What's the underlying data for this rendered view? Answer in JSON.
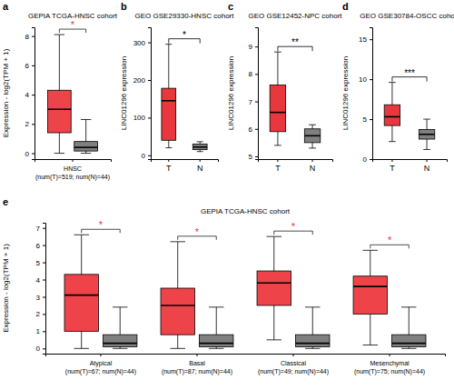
{
  "chart_data": [
    {
      "type": "box",
      "label": "a",
      "title": "GEPIA TCGA-HNSC cohort",
      "y_label": "Expression - log2(TPM + 1)",
      "categories": [
        "HNSC\n(num(T)=519; num(N)=44)"
      ],
      "series": [
        {
          "color": "#ee4449",
          "min": [
            0
          ],
          "q1": [
            1.4
          ],
          "median": [
            3.0
          ],
          "q3": [
            4.3
          ],
          "max": [
            8.1
          ]
        },
        {
          "color": "#7f7f7f",
          "min": [
            0
          ],
          "q1": [
            0.15
          ],
          "median": [
            0.4
          ],
          "q3": [
            0.8
          ],
          "max": [
            2.3
          ]
        }
      ],
      "significance": [
        "*"
      ],
      "ylim": [
        -0.4,
        8.6
      ],
      "yticks": [
        0,
        2,
        4,
        6,
        8
      ]
    },
    {
      "type": "box",
      "label": "b",
      "title": "GEO GSE29330-HNSC cohort",
      "y_label": "LINC01296 expression",
      "categories": [
        "T",
        "N"
      ],
      "series": [
        {
          "colors": [
            "#e8383d",
            "#808080"
          ],
          "min": [
            20,
            10
          ],
          "q1": [
            40,
            15
          ],
          "median": [
            145,
            22
          ],
          "q3": [
            178,
            30
          ],
          "max": [
            295,
            36
          ]
        }
      ],
      "significance": "*",
      "ylim": [
        -10,
        340
      ],
      "yticks": [
        0,
        100,
        200,
        300
      ]
    },
    {
      "type": "box",
      "label": "c",
      "title": "GEO GSE12452-NPC cohort",
      "y_label": "LINC01296 expression",
      "categories": [
        "T",
        "N"
      ],
      "series": [
        {
          "colors": [
            "#e8383d",
            "#808080"
          ],
          "min": [
            5.4,
            5.3
          ],
          "q1": [
            5.9,
            5.5
          ],
          "median": [
            6.6,
            5.75
          ],
          "q3": [
            7.6,
            6.0
          ],
          "max": [
            8.8,
            6.15
          ]
        }
      ],
      "significance": "**",
      "ylim": [
        4.9,
        9.7
      ],
      "yticks": [
        5,
        6,
        7,
        8,
        9
      ]
    },
    {
      "type": "box",
      "label": "d",
      "title": "GEO GSE30784-OSCC cohort",
      "y_label": "LINC01296 expression",
      "categories": [
        "T",
        "N"
      ],
      "series": [
        {
          "colors": [
            "#e8383d",
            "#808080"
          ],
          "min": [
            2.2,
            1.2
          ],
          "q1": [
            4.2,
            2.5
          ],
          "median": [
            5.3,
            3.1
          ],
          "q3": [
            6.8,
            3.7
          ],
          "max": [
            9.6,
            5.0
          ]
        }
      ],
      "significance": "***",
      "ylim": [
        0,
        16.5
      ],
      "yticks": [
        0,
        5,
        10,
        15
      ]
    },
    {
      "type": "box",
      "label": "e",
      "title": "GEPIA TCGA-HNSC cohort",
      "y_label": "Expression - log2(TPM + 1)",
      "categories": [
        "Atypical\n(num(T)=67; num(N)=44)",
        "Basal\n(num(T)=87; num(N)=44)",
        "Classical\n(num(T)=49; num(N)=44)",
        "Mesenchymal\n(num(T)=75; num(N)=44)"
      ],
      "series": [
        {
          "color": "#ee4449",
          "min": [
            0,
            0,
            0.5,
            0.2
          ],
          "q1": [
            1.0,
            0.8,
            2.5,
            2.0
          ],
          "median": [
            3.1,
            2.5,
            3.8,
            3.6
          ],
          "q3": [
            4.3,
            3.5,
            4.5,
            4.2
          ],
          "max": [
            6.6,
            6.2,
            6.5,
            5.7
          ]
        },
        {
          "color": "#7f7f7f",
          "min": [
            0,
            0,
            0,
            0
          ],
          "q1": [
            0.1,
            0.1,
            0.1,
            0.1
          ],
          "median": [
            0.3,
            0.3,
            0.3,
            0.3
          ],
          "q3": [
            0.8,
            0.8,
            0.8,
            0.8
          ],
          "max": [
            2.4,
            2.4,
            2.4,
            2.4
          ]
        }
      ],
      "significance": [
        "*",
        "*",
        "*",
        "*"
      ],
      "ylim": [
        -0.3,
        7.3
      ],
      "yticks": [
        0,
        1,
        2,
        3,
        4,
        5,
        6,
        7
      ]
    }
  ]
}
